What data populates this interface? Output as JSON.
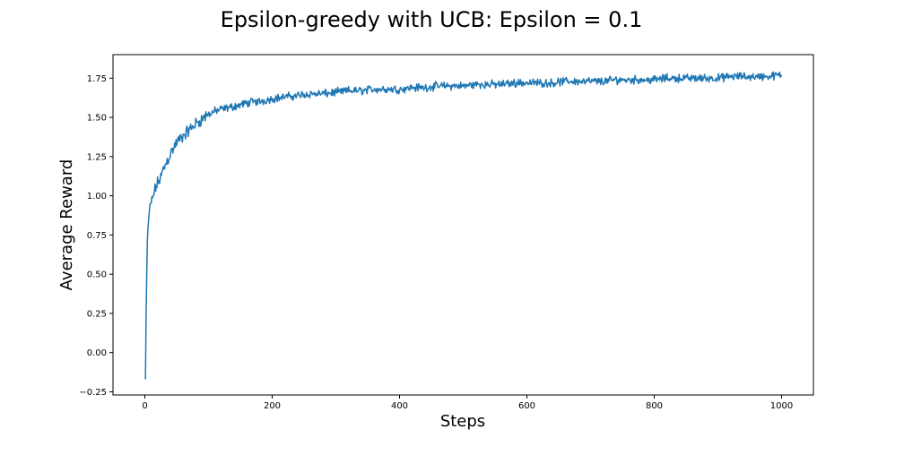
{
  "chart_data": {
    "type": "line",
    "title": "Epsilon-greedy with UCB: Epsilon = 0.1",
    "xlabel": "Steps",
    "ylabel": "Average Reward",
    "xlim": [
      -50,
      1050
    ],
    "ylim": [
      -0.27,
      1.9
    ],
    "xticks": [
      0,
      200,
      400,
      600,
      800,
      1000
    ],
    "xtick_labels": [
      "0",
      "200",
      "400",
      "600",
      "800",
      "1000"
    ],
    "yticks": [
      -0.25,
      0.0,
      0.25,
      0.5,
      0.75,
      1.0,
      1.25,
      1.5,
      1.75
    ],
    "ytick_labels": [
      "−0.25",
      "0.00",
      "0.25",
      "0.50",
      "0.75",
      "1.00",
      "1.25",
      "1.50",
      "1.75"
    ],
    "grid": false,
    "line_color": "#1f77b4",
    "series": [
      {
        "x": [
          1,
          2,
          3,
          4,
          5,
          7,
          10,
          13,
          16,
          20,
          25,
          30,
          35,
          40,
          45,
          50,
          60,
          70,
          80,
          90,
          100,
          110,
          120,
          130,
          140,
          150,
          160,
          170,
          180,
          190,
          200,
          220,
          240,
          260,
          280,
          300,
          320,
          340,
          360,
          380,
          400,
          420,
          440,
          460,
          480,
          500,
          520,
          540,
          560,
          580,
          600,
          620,
          640,
          660,
          680,
          700,
          720,
          740,
          760,
          780,
          800,
          820,
          840,
          860,
          880,
          900,
          920,
          940,
          960,
          980,
          995,
          1000
        ],
        "y": [
          -0.17,
          0.25,
          0.5,
          0.72,
          0.8,
          0.9,
          0.95,
          1.0,
          1.04,
          1.08,
          1.12,
          1.18,
          1.22,
          1.27,
          1.3,
          1.34,
          1.38,
          1.42,
          1.46,
          1.49,
          1.52,
          1.54,
          1.55,
          1.56,
          1.57,
          1.58,
          1.59,
          1.6,
          1.6,
          1.61,
          1.62,
          1.63,
          1.64,
          1.65,
          1.65,
          1.66,
          1.67,
          1.67,
          1.68,
          1.68,
          1.68,
          1.69,
          1.69,
          1.7,
          1.7,
          1.7,
          1.71,
          1.71,
          1.71,
          1.72,
          1.72,
          1.72,
          1.72,
          1.73,
          1.73,
          1.73,
          1.73,
          1.74,
          1.74,
          1.74,
          1.74,
          1.75,
          1.75,
          1.75,
          1.75,
          1.75,
          1.76,
          1.76,
          1.76,
          1.76,
          1.77,
          1.76
        ]
      }
    ]
  }
}
